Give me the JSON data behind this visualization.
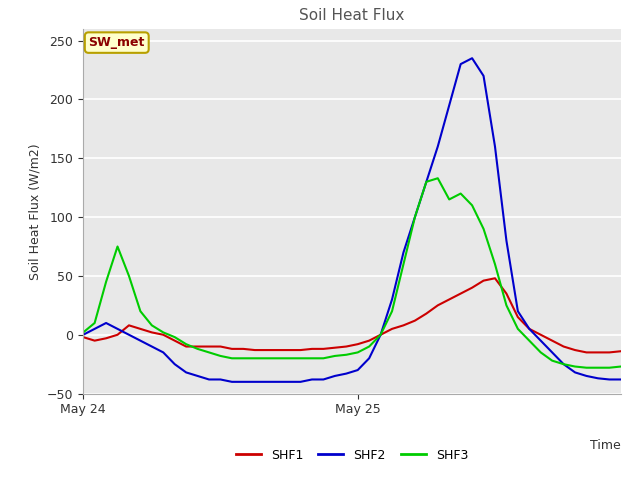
{
  "title": "Soil Heat Flux",
  "ylabel": "Soil Heat Flux (W/m2)",
  "xlabel": "Time",
  "ylim": [
    -50,
    260
  ],
  "yticks": [
    -50,
    0,
    50,
    100,
    150,
    200,
    250
  ],
  "fig_bg_color": "#ffffff",
  "axes_bg_color": "#e8e8e8",
  "grid_color": "white",
  "label_box": "SW_met",
  "label_box_text_color": "#8B0000",
  "label_box_bg": "#ffffcc",
  "label_box_border": "#b8a000",
  "series": {
    "SHF1": {
      "color": "#cc0000",
      "linewidth": 1.5
    },
    "SHF2": {
      "color": "#0000cc",
      "linewidth": 1.5
    },
    "SHF3": {
      "color": "#00cc00",
      "linewidth": 1.5
    }
  },
  "x_ticks_labels": [
    "May 24",
    "May 25"
  ],
  "x_tick_positions": [
    0,
    24
  ],
  "total_hours": 48,
  "SHF1": [
    -2,
    -5,
    -3,
    0,
    8,
    5,
    2,
    0,
    -5,
    -10,
    -10,
    -10,
    -10,
    -12,
    -12,
    -13,
    -13,
    -13,
    -13,
    -13,
    -12,
    -12,
    -11,
    -10,
    -8,
    -5,
    0,
    5,
    8,
    12,
    18,
    25,
    30,
    35,
    40,
    46,
    48,
    35,
    15,
    5,
    0,
    -5,
    -10,
    -13,
    -15,
    -15,
    -15,
    -14
  ],
  "SHF2": [
    0,
    5,
    10,
    5,
    0,
    -5,
    -10,
    -15,
    -25,
    -32,
    -35,
    -38,
    -38,
    -40,
    -40,
    -40,
    -40,
    -40,
    -40,
    -40,
    -38,
    -38,
    -35,
    -33,
    -30,
    -20,
    0,
    30,
    70,
    100,
    130,
    160,
    195,
    230,
    235,
    220,
    160,
    80,
    20,
    5,
    -5,
    -15,
    -25,
    -32,
    -35,
    -37,
    -38,
    -38
  ],
  "SHF3": [
    2,
    10,
    45,
    75,
    50,
    20,
    8,
    2,
    -2,
    -8,
    -12,
    -15,
    -18,
    -20,
    -20,
    -20,
    -20,
    -20,
    -20,
    -20,
    -20,
    -20,
    -18,
    -17,
    -15,
    -10,
    0,
    20,
    60,
    100,
    130,
    133,
    115,
    120,
    110,
    90,
    60,
    25,
    5,
    -5,
    -15,
    -22,
    -25,
    -27,
    -28,
    -28,
    -28,
    -27
  ]
}
